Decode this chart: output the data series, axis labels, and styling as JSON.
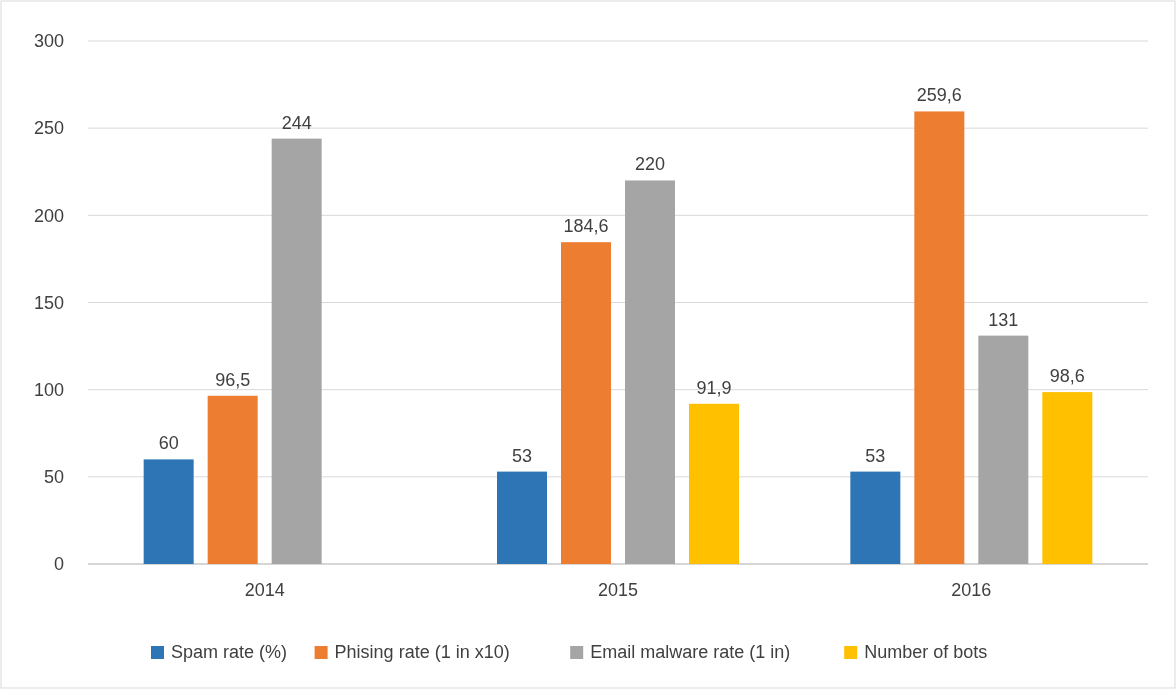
{
  "chart_data": {
    "type": "bar",
    "categories": [
      "2014",
      "2015",
      "2016"
    ],
    "series": [
      {
        "name": "Spam rate (%)",
        "color": "#2e75b6",
        "values": [
          60,
          53,
          53
        ],
        "value_labels": [
          "60",
          "53",
          "53"
        ]
      },
      {
        "name": "Phising rate (1 in x10)",
        "color": "#ed7d31",
        "values": [
          96.5,
          184.6,
          259.6
        ],
        "value_labels": [
          "96,5",
          "184,6",
          "259,6"
        ]
      },
      {
        "name": "Email malware rate (1 in)",
        "color": "#a5a5a5",
        "values": [
          244,
          220,
          131
        ],
        "value_labels": [
          "244",
          "220",
          "131"
        ]
      },
      {
        "name": "Number of bots",
        "color": "#ffc000",
        "values": [
          null,
          91.9,
          98.6
        ],
        "value_labels": [
          null,
          "91,9",
          "98,6"
        ]
      }
    ],
    "ylim": [
      0,
      300
    ],
    "yticks": [
      0,
      50,
      100,
      150,
      200,
      250,
      300
    ],
    "grid": "y",
    "legend": "bottom"
  }
}
